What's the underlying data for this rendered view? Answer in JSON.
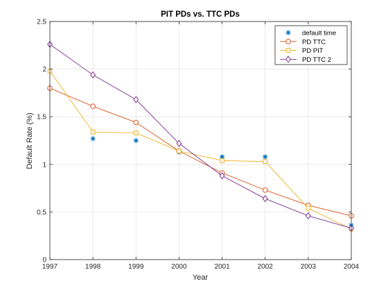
{
  "chart_data": {
    "type": "line",
    "title": "PIT PDs vs. TTC PDs",
    "xlabel": "Year",
    "ylabel": "Default Rate (%)",
    "xlim": [
      1997,
      2004
    ],
    "ylim": [
      0,
      2.5
    ],
    "x_ticks": [
      "1997",
      "1998",
      "1999",
      "2000",
      "2001",
      "2002",
      "2003",
      "2004"
    ],
    "y_ticks": [
      "0",
      "0.5",
      "1",
      "1.5",
      "2",
      "2.5"
    ],
    "grid": true,
    "legend_position": "top-right",
    "x": [
      1997,
      1998,
      1999,
      2000,
      2001,
      2002,
      2003,
      2004
    ],
    "series": [
      {
        "name": "default time",
        "style": "markers",
        "marker": "asterisk",
        "color": "#0072BD",
        "points": [
          {
            "x": 1998,
            "y": 1.27
          },
          {
            "x": 1999,
            "y": 1.25
          },
          {
            "x": 2000,
            "y": 1.13
          },
          {
            "x": 2001,
            "y": 1.08
          },
          {
            "x": 2002,
            "y": 1.08
          },
          {
            "x": 2004,
            "y": 0.36
          }
        ]
      },
      {
        "name": "PD TTC",
        "style": "line",
        "marker": "circle",
        "color": "#D95319",
        "values": [
          1.8,
          1.61,
          1.44,
          1.14,
          0.91,
          0.73,
          0.57,
          0.46
        ]
      },
      {
        "name": "PD PIT",
        "style": "line",
        "marker": "square",
        "color": "#EDB120",
        "values": [
          1.98,
          1.34,
          1.33,
          1.14,
          1.04,
          1.03,
          0.54,
          0.32
        ]
      },
      {
        "name": "PD TTC 2",
        "style": "line",
        "marker": "diamond",
        "color": "#7E2F8E",
        "values": [
          2.26,
          1.94,
          1.68,
          1.22,
          0.88,
          0.64,
          0.46,
          0.33
        ]
      }
    ]
  }
}
